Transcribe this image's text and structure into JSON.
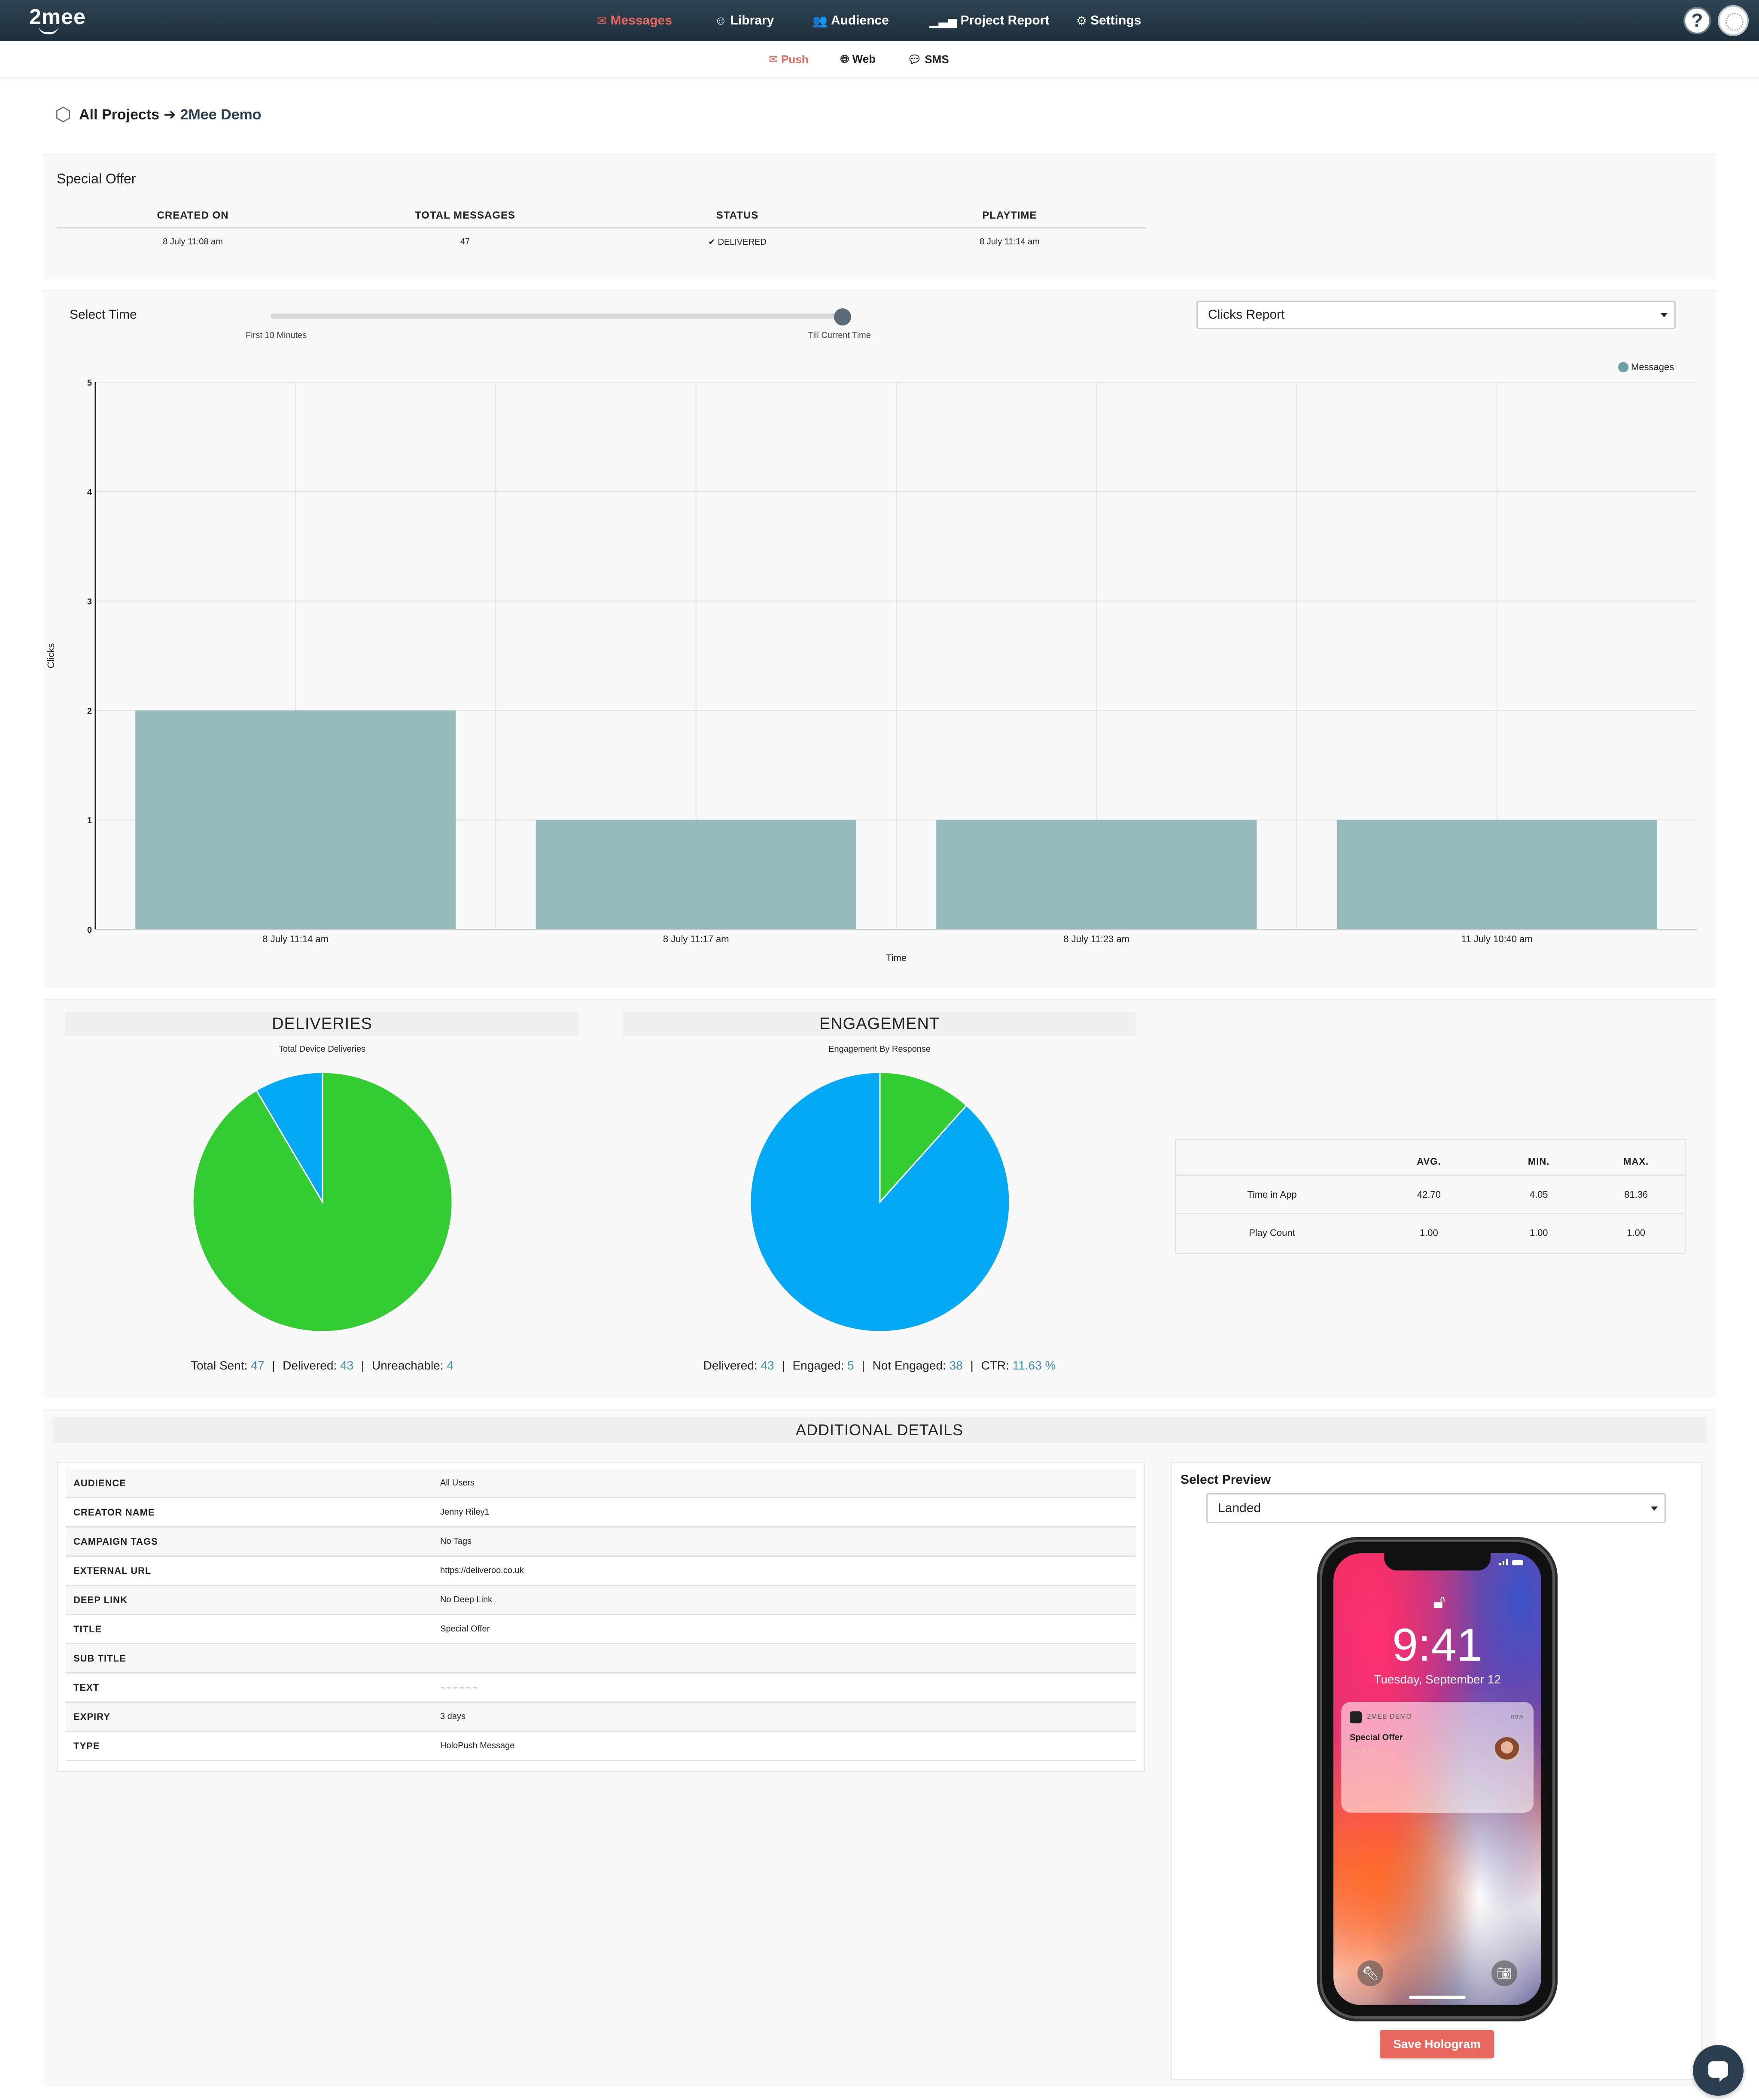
{
  "app": {
    "logo": "2mee"
  },
  "nav": {
    "items": [
      {
        "label": "Messages",
        "icon": "envelope-icon",
        "active": true
      },
      {
        "label": "Library",
        "icon": "smile-icon",
        "active": false
      },
      {
        "label": "Audience",
        "icon": "users-icon",
        "active": false
      },
      {
        "label": "Project Report",
        "icon": "bar-chart-icon",
        "active": false
      },
      {
        "label": "Settings",
        "icon": "gears-icon",
        "active": false
      }
    ],
    "help": "?"
  },
  "subnav": {
    "items": [
      {
        "label": "Push",
        "icon": "envelope-icon",
        "active": true
      },
      {
        "label": "Web",
        "icon": "globe-icon",
        "active": false
      },
      {
        "label": "SMS",
        "icon": "chat-icon",
        "active": false
      }
    ]
  },
  "breadcrumb": {
    "root": "All Projects",
    "current": "2Mee Demo"
  },
  "summary": {
    "title": "Special Offer",
    "headers": [
      "CREATED ON",
      "TOTAL MESSAGES",
      "STATUS",
      "PLAYTIME"
    ],
    "values": [
      "8 July 11:08 am",
      "47",
      "✔ DELIVERED",
      "8 July 11:14 am"
    ]
  },
  "time_filter": {
    "label": "Select Time",
    "min_label": "First 10 Minutes",
    "max_label": "Till Current Time",
    "value_fraction": 1.0
  },
  "report_select": {
    "value": "Clicks Report"
  },
  "chart_data": {
    "type": "bar",
    "categories": [
      "8 July 11:14 am",
      "8 July 11:17 am",
      "8 July 11:23 am",
      "11 July 10:40 am"
    ],
    "series": [
      {
        "name": "Messages",
        "values": [
          2,
          1,
          1,
          1
        ],
        "color": "#8fb7b9"
      }
    ],
    "xlabel": "Time",
    "ylabel": "Clicks",
    "ylim": [
      0,
      5
    ],
    "yticks": [
      "0",
      "1",
      "2",
      "3",
      "4",
      "5"
    ],
    "grid": true,
    "legend": "top-right"
  },
  "deliveries": {
    "title": "DELIVERIES",
    "subtitle": "Total Device Deliveries",
    "slices": [
      {
        "label": "Delivered",
        "value": 43,
        "color": "#33cc33"
      },
      {
        "label": "Unreachable",
        "value": 4,
        "color": "#03a9f4"
      }
    ],
    "footer": [
      {
        "label": "Total Sent:",
        "value": "47"
      },
      {
        "label": "Delivered:",
        "value": "43"
      },
      {
        "label": "Unreachable:",
        "value": "4"
      }
    ]
  },
  "engagement": {
    "title": "ENGAGEMENT",
    "subtitle": "Engagement By Response",
    "slices": [
      {
        "label": "Engaged",
        "value": 5,
        "color": "#33cc33"
      },
      {
        "label": "Not Engaged",
        "value": 38,
        "color": "#03a9f4"
      }
    ],
    "footer": [
      {
        "label": "Delivered:",
        "value": "43"
      },
      {
        "label": "Engaged:",
        "value": "5"
      },
      {
        "label": "Not Engaged:",
        "value": "38"
      },
      {
        "label": "CTR:",
        "value": "11.63 %"
      }
    ]
  },
  "metrics": {
    "headers": [
      "",
      "AVG.",
      "MIN.",
      "MAX."
    ],
    "rows": [
      [
        "Time in App",
        "42.70",
        "4.05",
        "81.36"
      ],
      [
        "Play Count",
        "1.00",
        "1.00",
        "1.00"
      ]
    ]
  },
  "additional": {
    "title": "ADDITIONAL DETAILS",
    "rows": [
      {
        "key": "AUDIENCE",
        "value": "All Users"
      },
      {
        "key": "CREATOR NAME",
        "value": "Jenny Riley1"
      },
      {
        "key": "CAMPAIGN TAGS",
        "value": "No Tags"
      },
      {
        "key": "EXTERNAL URL",
        "value": "https://deliveroo.co.uk"
      },
      {
        "key": "DEEP LINK",
        "value": "No Deep Link"
      },
      {
        "key": "TITLE",
        "value": "Special Offer"
      },
      {
        "key": "SUB TITLE",
        "value": ""
      },
      {
        "key": "TEXT",
        "value": "⌁⌁⌁⌁⌁⌁"
      },
      {
        "key": "EXPIRY",
        "value": "3 days"
      },
      {
        "key": "TYPE",
        "value": "HoloPush Message"
      }
    ]
  },
  "preview": {
    "label": "Select Preview",
    "select_value": "Landed",
    "phone": {
      "time": "9:41",
      "date": "Tuesday, September 12",
      "notification": {
        "app": "2MEE DEMO",
        "when": "now",
        "title": "Special Offer",
        "text": "⌁⌁⌁⌁⌁"
      }
    },
    "save_label": "Save Hologram"
  },
  "colors": {
    "accent": "#e8675e",
    "navbar": "#2f4555",
    "bar": "#8fb7b9",
    "link": "#3d8fb0"
  }
}
